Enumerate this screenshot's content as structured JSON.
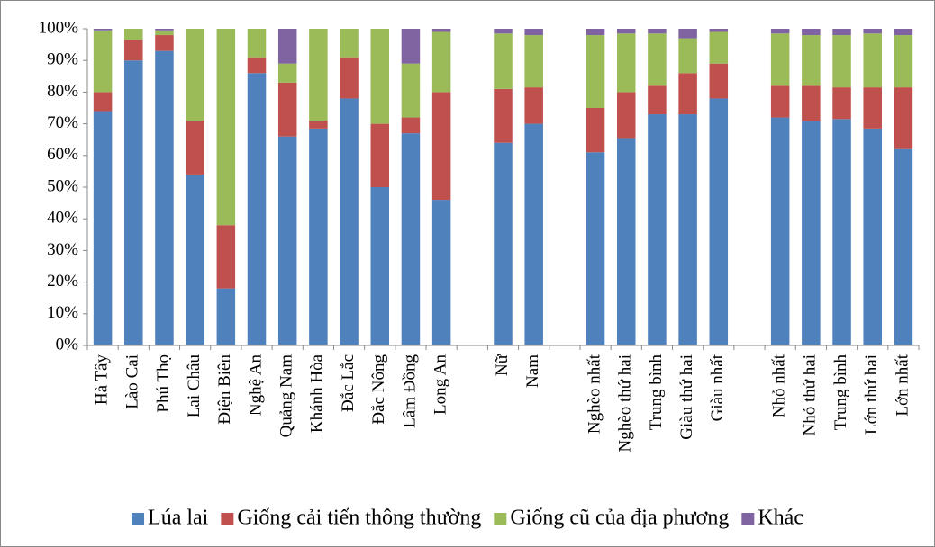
{
  "chart_data": {
    "type": "stacked_bar",
    "categories": [
      "Hà Tây",
      "Lào Cai",
      "Phú Thọ",
      "Lai Châu",
      "Điện Biên",
      "Nghệ An",
      "Quảng Nam",
      "Khánh Hòa",
      "Đắc Lắc",
      "Đắc Nông",
      "Lâm Đồng",
      "Long An",
      null,
      "Nữ",
      "Nam",
      null,
      "Nghèo nhất",
      "Nghèo thứ hai",
      "Trung bình",
      "Giàu thứ hai",
      "Giàu nhất",
      null,
      "Nhỏ nhất",
      "Nhỏ thứ hai",
      "Trung bình",
      "Lớn thứ hai",
      "Lớn nhất"
    ],
    "series": [
      {
        "name": "Lúa lai",
        "color": "#4f81bd",
        "values": [
          74,
          90,
          93,
          54,
          18,
          86,
          66,
          68.5,
          78,
          50,
          67,
          46,
          null,
          64,
          70,
          null,
          61,
          65.5,
          73,
          73,
          78,
          null,
          72,
          71,
          71.5,
          68.5,
          62
        ]
      },
      {
        "name": "Giống cải tiến thông thường",
        "color": "#c0504d",
        "values": [
          6,
          6.5,
          5,
          17,
          20,
          5,
          17,
          2.5,
          13,
          20,
          5,
          34,
          null,
          17,
          11.5,
          null,
          14,
          14.5,
          9,
          13,
          11,
          null,
          10,
          11,
          10,
          13,
          19.5
        ]
      },
      {
        "name": "Giống cũ của địa phương",
        "color": "#9bbb59",
        "values": [
          19.5,
          3.5,
          1.5,
          29,
          62,
          9,
          6,
          29,
          9,
          30,
          17,
          19,
          null,
          17.5,
          16.5,
          null,
          23,
          18.5,
          16.5,
          11,
          10,
          null,
          16.5,
          16,
          16.5,
          17,
          16.5
        ]
      },
      {
        "name": "Khác",
        "color": "#8064a2",
        "values": [
          0.5,
          0,
          0.5,
          0,
          0,
          0,
          11,
          0,
          0,
          0,
          11,
          1,
          null,
          1.5,
          2,
          null,
          2,
          1.5,
          1.5,
          3,
          1,
          null,
          1.5,
          2,
          2,
          1.5,
          2
        ]
      }
    ],
    "ylim": [
      0,
      100
    ],
    "yticks": [
      {
        "value": 0,
        "label": "0%"
      },
      {
        "value": 10,
        "label": "10%"
      },
      {
        "value": 20,
        "label": "20%"
      },
      {
        "value": 30,
        "label": "30%"
      },
      {
        "value": 40,
        "label": "40%"
      },
      {
        "value": 50,
        "label": "50%"
      },
      {
        "value": 60,
        "label": "60%"
      },
      {
        "value": 70,
        "label": "70%"
      },
      {
        "value": 80,
        "label": "80%"
      },
      {
        "value": 90,
        "label": "90%"
      },
      {
        "value": 100,
        "label": "100%"
      }
    ],
    "grid": false,
    "legend": "bottom"
  }
}
